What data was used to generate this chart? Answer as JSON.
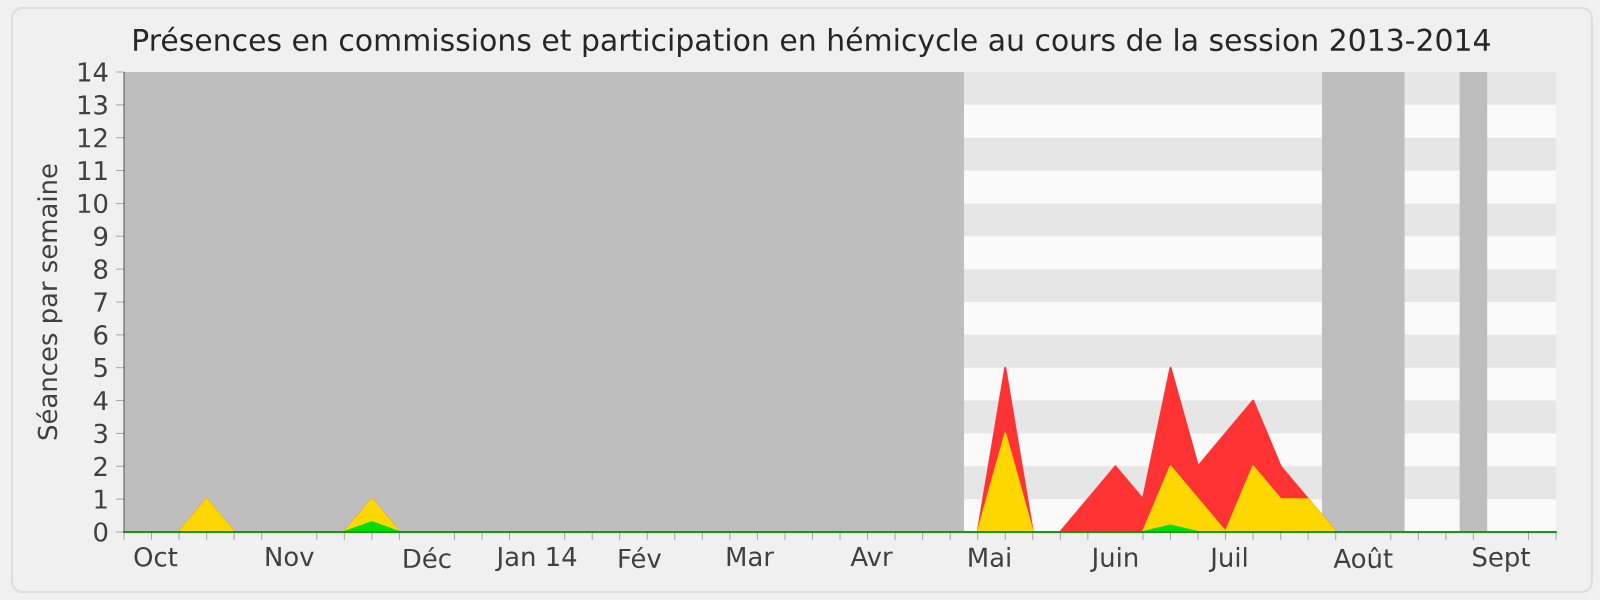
{
  "chart_data": {
    "type": "area",
    "title": "Présences en commissions et participation en hémicycle au cours de la session 2013-2014",
    "ylabel": "Séances par semaine",
    "x": [
      "2013-09-23",
      "2013-09-30",
      "2013-10-07",
      "2013-10-14",
      "2013-10-21",
      "2013-10-28",
      "2013-11-04",
      "2013-11-11",
      "2013-11-18",
      "2013-11-25",
      "2013-12-02",
      "2013-12-09",
      "2013-12-16",
      "2013-12-23",
      "2013-12-30",
      "2014-01-06",
      "2014-01-13",
      "2014-01-20",
      "2014-01-27",
      "2014-02-03",
      "2014-02-10",
      "2014-02-17",
      "2014-02-24",
      "2014-03-03",
      "2014-03-10",
      "2014-03-17",
      "2014-03-24",
      "2014-03-31",
      "2014-04-07",
      "2014-04-14",
      "2014-04-21",
      "2014-04-28",
      "2014-05-05",
      "2014-05-12",
      "2014-05-19",
      "2014-05-26",
      "2014-06-02",
      "2014-06-09",
      "2014-06-16",
      "2014-06-23",
      "2014-06-30",
      "2014-07-07",
      "2014-07-14",
      "2014-07-21",
      "2014-07-28",
      "2014-08-04",
      "2014-08-11",
      "2014-08-18",
      "2014-08-25",
      "2014-09-01",
      "2014-09-08",
      "2014-09-15",
      "2014-09-22"
    ],
    "series": [
      {
        "color": "#ff3333",
        "values": [
          0,
          0,
          0,
          1,
          0,
          0,
          0,
          0,
          0,
          1,
          0,
          0,
          0,
          0,
          0,
          0,
          0,
          0,
          0,
          0,
          0,
          0,
          0,
          0,
          0,
          0,
          0,
          0,
          0,
          0,
          0,
          0,
          5,
          0,
          0,
          1,
          2,
          1,
          5,
          2,
          3,
          4,
          2,
          1,
          0,
          0,
          0,
          0,
          0,
          0,
          0,
          0,
          0
        ]
      },
      {
        "color": "#ffd700",
        "values": [
          0,
          0,
          0,
          1,
          0,
          0,
          0,
          0,
          0,
          1,
          0,
          0,
          0,
          0,
          0,
          0,
          0,
          0,
          0,
          0,
          0,
          0,
          0,
          0,
          0,
          0,
          0,
          0,
          0,
          0,
          0,
          0,
          3,
          0,
          0,
          0,
          0,
          0,
          2,
          1,
          0,
          2,
          1,
          1,
          0,
          0,
          0,
          0,
          0,
          0,
          0,
          0,
          0
        ]
      },
      {
        "color": "#00dd00",
        "values": [
          0,
          0,
          0,
          0,
          0,
          0,
          0,
          0,
          0,
          0.3,
          0,
          0,
          0,
          0,
          0,
          0,
          0,
          0,
          0,
          0,
          0,
          0,
          0,
          0,
          0,
          0,
          0,
          0,
          0,
          0,
          0,
          0,
          0,
          0,
          0,
          0,
          0,
          0,
          0.2,
          0,
          0,
          0,
          0,
          0,
          0,
          0,
          0,
          0,
          0,
          0,
          0,
          0,
          0
        ]
      }
    ],
    "xlim": [
      "2013-09-23",
      "2014-09-22"
    ],
    "ylim": [
      0,
      14
    ],
    "xticks": [
      {
        "value": "2013-09-23",
        "label": null
      },
      {
        "value": "2013-09-30",
        "label": null
      },
      {
        "value": "2013-10-01",
        "label": "Oct"
      },
      {
        "value": "2013-10-07",
        "label": null
      },
      {
        "value": "2013-10-14",
        "label": null
      },
      {
        "value": "2013-10-21",
        "label": null
      },
      {
        "value": "2013-10-28",
        "label": null
      },
      {
        "value": "2013-11-04",
        "label": "Nov"
      },
      {
        "value": "2013-11-11",
        "label": null
      },
      {
        "value": "2013-11-18",
        "label": null
      },
      {
        "value": "2013-11-25",
        "label": null
      },
      {
        "value": "2013-12-02",
        "label": null
      },
      {
        "value": "2013-12-09",
        "label": "Déc"
      },
      {
        "value": "2013-12-16",
        "label": null
      },
      {
        "value": "2013-12-23",
        "label": null
      },
      {
        "value": "2013-12-30",
        "label": null
      },
      {
        "value": "2014-01-06",
        "label": "Jan 14"
      },
      {
        "value": "2014-01-13",
        "label": null
      },
      {
        "value": "2014-01-20",
        "label": null
      },
      {
        "value": "2014-01-27",
        "label": null
      },
      {
        "value": "2014-02-01",
        "label": "Fév"
      },
      {
        "value": "2014-02-03",
        "label": null
      },
      {
        "value": "2014-02-10",
        "label": null
      },
      {
        "value": "2014-02-17",
        "label": null
      },
      {
        "value": "2014-02-24",
        "label": null
      },
      {
        "value": "2014-03-01",
        "label": "Mar"
      },
      {
        "value": "2014-03-03",
        "label": null
      },
      {
        "value": "2014-03-10",
        "label": null
      },
      {
        "value": "2014-03-17",
        "label": null
      },
      {
        "value": "2014-03-24",
        "label": null
      },
      {
        "value": "2014-03-31",
        "label": null
      },
      {
        "value": "2014-04-01",
        "label": "Avr"
      },
      {
        "value": "2014-04-07",
        "label": null
      },
      {
        "value": "2014-04-14",
        "label": null
      },
      {
        "value": "2014-04-21",
        "label": null
      },
      {
        "value": "2014-04-28",
        "label": null
      },
      {
        "value": "2014-05-01",
        "label": "Mai"
      },
      {
        "value": "2014-05-05",
        "label": null
      },
      {
        "value": "2014-05-12",
        "label": null
      },
      {
        "value": "2014-05-19",
        "label": null
      },
      {
        "value": "2014-05-26",
        "label": null
      },
      {
        "value": "2014-06-02",
        "label": "Juin"
      },
      {
        "value": "2014-06-09",
        "label": null
      },
      {
        "value": "2014-06-16",
        "label": null
      },
      {
        "value": "2014-06-23",
        "label": null
      },
      {
        "value": "2014-06-30",
        "label": null
      },
      {
        "value": "2014-07-01",
        "label": "Juil"
      },
      {
        "value": "2014-07-07",
        "label": null
      },
      {
        "value": "2014-07-14",
        "label": null
      },
      {
        "value": "2014-07-21",
        "label": null
      },
      {
        "value": "2014-07-28",
        "label": null
      },
      {
        "value": "2014-08-04",
        "label": "Août"
      },
      {
        "value": "2014-08-11",
        "label": null
      },
      {
        "value": "2014-08-18",
        "label": null
      },
      {
        "value": "2014-08-25",
        "label": null
      },
      {
        "value": "2014-09-01",
        "label": null
      },
      {
        "value": "2014-09-08",
        "label": "Sept"
      },
      {
        "value": "2014-09-15",
        "label": null
      },
      {
        "value": "2014-09-22",
        "label": null
      }
    ],
    "yticks": [
      0,
      1,
      2,
      3,
      4,
      5,
      6,
      7,
      8,
      9,
      10,
      11,
      12,
      13,
      14
    ],
    "bands": [
      {
        "axis": "x",
        "from": "2013-09-23",
        "to": "2014-04-24T12:00",
        "color": "#bebebe"
      },
      {
        "axis": "x",
        "from": "2014-07-24T12:00",
        "to": "2014-08-14T12:00",
        "color": "#bebebe"
      },
      {
        "axis": "x",
        "from": "2014-08-28T12:00",
        "to": "2014-09-04T12:00",
        "color": "#bebebe"
      },
      {
        "axis": "y",
        "from": 1,
        "to": 2,
        "color": "#e6e6e6"
      },
      {
        "axis": "y",
        "from": 3,
        "to": 4,
        "color": "#e6e6e6"
      },
      {
        "axis": "y",
        "from": 5,
        "to": 6,
        "color": "#e6e6e6"
      },
      {
        "axis": "y",
        "from": 7,
        "to": 8,
        "color": "#e6e6e6"
      },
      {
        "axis": "y",
        "from": 9,
        "to": 10,
        "color": "#e6e6e6"
      },
      {
        "axis": "y",
        "from": 11,
        "to": 12,
        "color": "#e6e6e6"
      },
      {
        "axis": "y",
        "from": 13,
        "to": 14,
        "color": "#e6e6e6"
      }
    ]
  }
}
